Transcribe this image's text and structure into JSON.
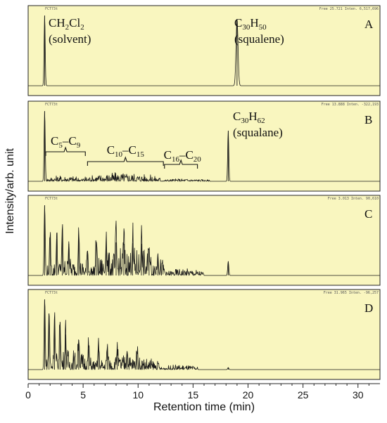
{
  "chart_data": {
    "type": "line",
    "xlabel": "Retention time (min)",
    "ylabel": "Intensity/arb. unit",
    "xlim": [
      0,
      32
    ],
    "xticks": [
      0,
      5,
      10,
      15,
      20,
      25,
      30
    ],
    "panels": [
      {
        "letter": "A",
        "header": [
          "FCT73t",
          "Free 25.721   Inten.   6,517,696"
        ],
        "peaks": [
          {
            "x": 1.5,
            "y": 1.0,
            "w": 0.05
          },
          {
            "x": 19.0,
            "y": 0.95,
            "w": 0.09
          }
        ],
        "regions": [],
        "annotations": [
          {
            "segments": [
              {
                "t": "CH",
                "s": ""
              },
              {
                "t": "2",
                "s": "sub"
              },
              {
                "t": "Cl",
                "s": ""
              },
              {
                "t": "2",
                "s": "sub"
              }
            ],
            "second_line": "(solvent)"
          },
          {
            "segments": [
              {
                "t": "C",
                "s": ""
              },
              {
                "t": "30",
                "s": "sub"
              },
              {
                "t": "H",
                "s": ""
              },
              {
                "t": "50",
                "s": "sub"
              }
            ],
            "second_line": "(squalene)"
          }
        ]
      },
      {
        "letter": "B",
        "header": [
          "FCT73t",
          "Free 13.888   Inten.   -322,193"
        ],
        "peaks": [
          {
            "x": 1.5,
            "y": 1.0,
            "w": 0.05
          },
          {
            "x": 18.2,
            "y": 0.72,
            "w": 0.05
          }
        ],
        "regions": [
          {
            "from": 1.5,
            "to": 5.0,
            "amp": 0.09
          },
          {
            "from": 5.0,
            "to": 12.0,
            "amp": 0.13
          },
          {
            "from": 12.0,
            "to": 16.5,
            "amp": 0.04
          }
        ],
        "annotations": [
          {
            "segments": [
              {
                "t": "C",
                "s": ""
              },
              {
                "t": "30",
                "s": "sub"
              },
              {
                "t": "H",
                "s": ""
              },
              {
                "t": "62",
                "s": "sub"
              }
            ],
            "second_line": "(squalane)"
          }
        ],
        "braces": [
          {
            "from": 1.6,
            "to": 5.2,
            "segments": [
              {
                "t": "C",
                "s": ""
              },
              {
                "t": "5",
                "s": "sub"
              },
              {
                "t": "–C",
                "s": ""
              },
              {
                "t": "9",
                "s": "sub"
              }
            ]
          },
          {
            "from": 5.4,
            "to": 12.3,
            "segments": [
              {
                "t": "C",
                "s": ""
              },
              {
                "t": "10",
                "s": "sub"
              },
              {
                "t": "–C",
                "s": ""
              },
              {
                "t": "15",
                "s": "sub"
              }
            ]
          },
          {
            "from": 12.4,
            "to": 15.4,
            "segments": [
              {
                "t": "C",
                "s": ""
              },
              {
                "t": "16",
                "s": "sub"
              },
              {
                "t": "–C",
                "s": ""
              },
              {
                "t": "20",
                "s": "sub"
              }
            ]
          }
        ]
      },
      {
        "letter": "C",
        "header": [
          "FCT73t",
          "Free 3.013   Inten.   90,610"
        ],
        "peaks": [
          {
            "x": 1.5,
            "y": 1.0,
            "w": 0.05
          },
          {
            "x": 2.0,
            "y": 0.55,
            "w": 0.05
          },
          {
            "x": 2.6,
            "y": 0.52,
            "w": 0.05
          },
          {
            "x": 3.1,
            "y": 0.62,
            "w": 0.05
          },
          {
            "x": 3.7,
            "y": 0.45,
            "w": 0.05
          },
          {
            "x": 4.6,
            "y": 0.58,
            "w": 0.05
          },
          {
            "x": 5.4,
            "y": 0.35,
            "w": 0.05
          },
          {
            "x": 6.2,
            "y": 0.48,
            "w": 0.05
          },
          {
            "x": 7.1,
            "y": 0.5,
            "w": 0.05
          },
          {
            "x": 8.0,
            "y": 0.47,
            "w": 0.05
          },
          {
            "x": 8.7,
            "y": 0.45,
            "w": 0.05
          },
          {
            "x": 9.5,
            "y": 0.46,
            "w": 0.05
          },
          {
            "x": 10.3,
            "y": 0.45,
            "w": 0.05
          },
          {
            "x": 11.0,
            "y": 0.38,
            "w": 0.05
          },
          {
            "x": 11.8,
            "y": 0.3,
            "w": 0.05
          },
          {
            "x": 18.2,
            "y": 0.2,
            "w": 0.05
          }
        ],
        "regions": [
          {
            "from": 1.5,
            "to": 6.0,
            "amp": 0.25
          },
          {
            "from": 6.0,
            "to": 12.5,
            "amp": 0.4
          },
          {
            "from": 12.5,
            "to": 16.0,
            "amp": 0.1
          }
        ],
        "annotations": []
      },
      {
        "letter": "D",
        "header": [
          "FCT73t",
          "Free 31.965   Inten.   -96,257"
        ],
        "peaks": [
          {
            "x": 1.5,
            "y": 1.0,
            "w": 0.05
          },
          {
            "x": 1.9,
            "y": 0.8,
            "w": 0.05
          },
          {
            "x": 2.4,
            "y": 0.75,
            "w": 0.05
          },
          {
            "x": 2.9,
            "y": 0.68,
            "w": 0.05
          },
          {
            "x": 3.4,
            "y": 0.5,
            "w": 0.05
          },
          {
            "x": 4.6,
            "y": 0.42,
            "w": 0.05
          },
          {
            "x": 5.5,
            "y": 0.3,
            "w": 0.05
          },
          {
            "x": 6.4,
            "y": 0.35,
            "w": 0.05
          },
          {
            "x": 7.2,
            "y": 0.3,
            "w": 0.05
          },
          {
            "x": 8.1,
            "y": 0.28,
            "w": 0.05
          },
          {
            "x": 9.0,
            "y": 0.26,
            "w": 0.05
          },
          {
            "x": 9.9,
            "y": 0.24,
            "w": 0.05
          },
          {
            "x": 18.2,
            "y": 0.03,
            "w": 0.05
          }
        ],
        "regions": [
          {
            "from": 1.5,
            "to": 6.0,
            "amp": 0.3
          },
          {
            "from": 6.0,
            "to": 12.0,
            "amp": 0.22
          },
          {
            "from": 12.0,
            "to": 15.5,
            "amp": 0.07
          }
        ],
        "annotations": []
      }
    ]
  }
}
